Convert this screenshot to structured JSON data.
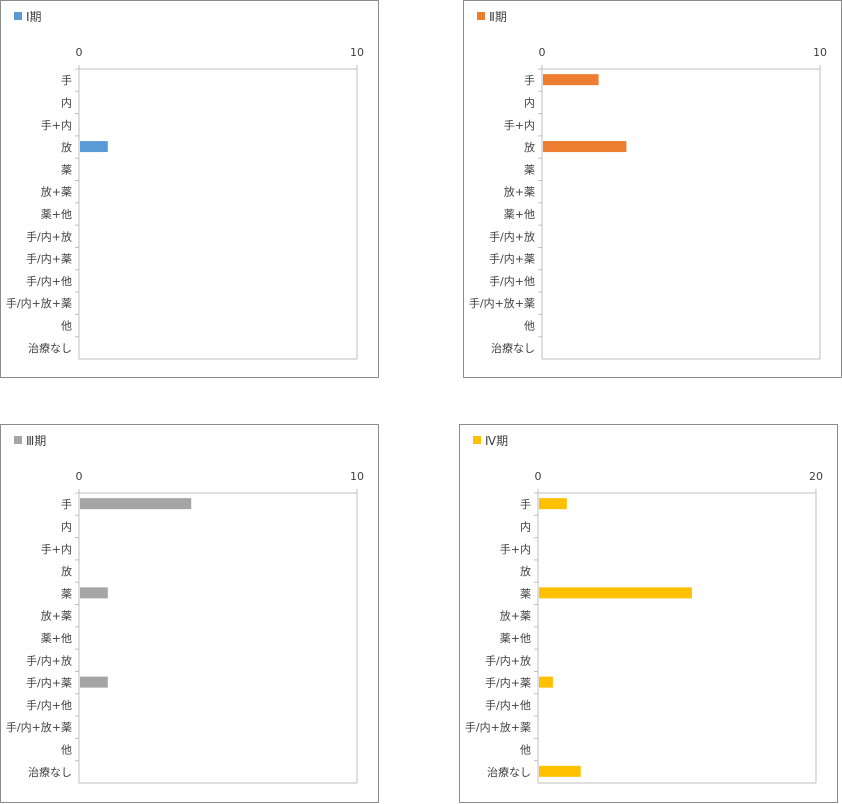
{
  "chart_data": [
    {
      "type": "bar",
      "orientation": "horizontal",
      "categories": [
        "手",
        "内",
        "手+内",
        "放",
        "薬",
        "放+薬",
        "薬+他",
        "手/内+放",
        "手/内+薬",
        "手/内+他",
        "手/内+放+薬",
        "他",
        "治療なし"
      ],
      "series": [
        {
          "name": "Ⅰ期",
          "values": [
            0,
            0,
            0,
            1,
            0,
            0,
            0,
            0,
            0,
            0,
            0,
            0,
            0
          ]
        }
      ],
      "color": "#5b9bd5",
      "xlim": [
        0,
        10
      ],
      "xticks": [
        0,
        10
      ],
      "legend_position": "top-left",
      "grid": false
    },
    {
      "type": "bar",
      "orientation": "horizontal",
      "categories": [
        "手",
        "内",
        "手+内",
        "放",
        "薬",
        "放+薬",
        "薬+他",
        "手/内+放",
        "手/内+薬",
        "手/内+他",
        "手/内+放+薬",
        "他",
        "治療なし"
      ],
      "series": [
        {
          "name": "Ⅱ期",
          "values": [
            2,
            0,
            0,
            3,
            0,
            0,
            0,
            0,
            0,
            0,
            0,
            0,
            0
          ]
        }
      ],
      "color": "#ed7d31",
      "xlim": [
        0,
        10
      ],
      "xticks": [
        0,
        10
      ],
      "legend_position": "top-left",
      "grid": false
    },
    {
      "type": "bar",
      "orientation": "horizontal",
      "categories": [
        "手",
        "内",
        "手+内",
        "放",
        "薬",
        "放+薬",
        "薬+他",
        "手/内+放",
        "手/内+薬",
        "手/内+他",
        "手/内+放+薬",
        "他",
        "治療なし"
      ],
      "series": [
        {
          "name": "Ⅲ期",
          "values": [
            4,
            0,
            0,
            0,
            1,
            0,
            0,
            0,
            1,
            0,
            0,
            0,
            0
          ]
        }
      ],
      "color": "#a5a5a5",
      "xlim": [
        0,
        10
      ],
      "xticks": [
        0,
        10
      ],
      "legend_position": "top-left",
      "grid": false
    },
    {
      "type": "bar",
      "orientation": "horizontal",
      "categories": [
        "手",
        "内",
        "手+内",
        "放",
        "薬",
        "放+薬",
        "薬+他",
        "手/内+放",
        "手/内+薬",
        "手/内+他",
        "手/内+放+薬",
        "他",
        "治療なし"
      ],
      "series": [
        {
          "name": "Ⅳ期",
          "values": [
            2,
            0,
            0,
            0,
            11,
            0,
            0,
            0,
            1,
            0,
            0,
            0,
            3
          ]
        }
      ],
      "color": "#ffc000",
      "xlim": [
        0,
        20
      ],
      "xticks": [
        0,
        20
      ],
      "legend_position": "top-left",
      "grid": false
    }
  ]
}
